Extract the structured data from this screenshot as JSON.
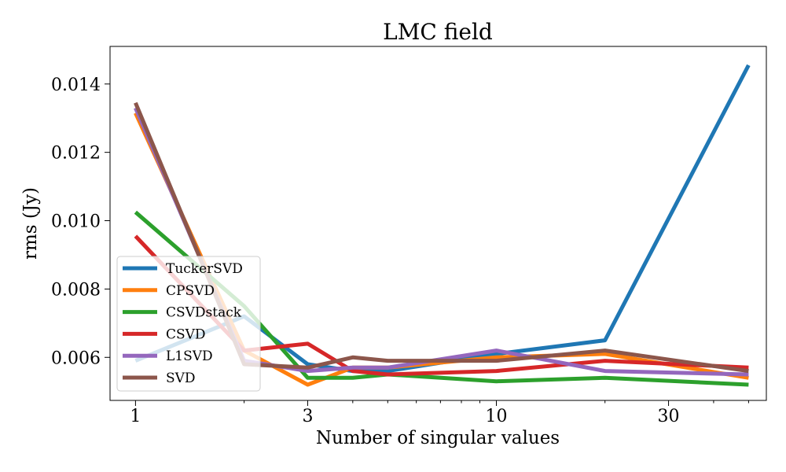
{
  "chart_data": {
    "type": "line",
    "title": "LMC field",
    "xlabel": "Number of singular values",
    "ylabel": "rms (Jy)",
    "xscale": "log",
    "xlim": [
      0.85,
      56
    ],
    "ylim": [
      0.00474,
      0.0151
    ],
    "xticks": [
      1,
      3,
      10,
      30
    ],
    "xtick_labels": [
      "1",
      "3",
      "10",
      "30"
    ],
    "yticks": [
      0.006,
      0.008,
      0.01,
      0.012,
      0.014
    ],
    "ytick_labels": [
      "0.006",
      "0.008",
      "0.010",
      "0.012",
      "0.014"
    ],
    "x": [
      1,
      2,
      3,
      4,
      5,
      10,
      20,
      50
    ],
    "grid": false,
    "legend_position": "lower-left",
    "series": [
      {
        "name": "TuckerSVD",
        "color": "#1f77b4",
        "values": [
          0.0059,
          0.0072,
          0.0058,
          0.0056,
          0.0056,
          0.0061,
          0.0065,
          0.01455
        ]
      },
      {
        "name": "CPSVD",
        "color": "#ff7f0e",
        "values": [
          0.01315,
          0.0062,
          0.0052,
          0.0057,
          0.0057,
          0.006,
          0.0061,
          0.0054
        ]
      },
      {
        "name": "CSVDstack",
        "color": "#2ca02c",
        "values": [
          0.01025,
          0.0075,
          0.0054,
          0.0054,
          0.0055,
          0.0053,
          0.0054,
          0.0052
        ]
      },
      {
        "name": "CSVD",
        "color": "#d62728",
        "values": [
          0.00955,
          0.0062,
          0.0064,
          0.0056,
          0.0055,
          0.0056,
          0.0059,
          0.0057
        ]
      },
      {
        "name": "L1SVD",
        "color": "#9467bd",
        "values": [
          0.0133,
          0.0059,
          0.0056,
          0.0057,
          0.0057,
          0.0062,
          0.0056,
          0.0055
        ]
      },
      {
        "name": "SVD",
        "color": "#8c564b",
        "values": [
          0.01345,
          0.0058,
          0.0057,
          0.006,
          0.0059,
          0.0059,
          0.0062,
          0.0056
        ]
      }
    ]
  }
}
